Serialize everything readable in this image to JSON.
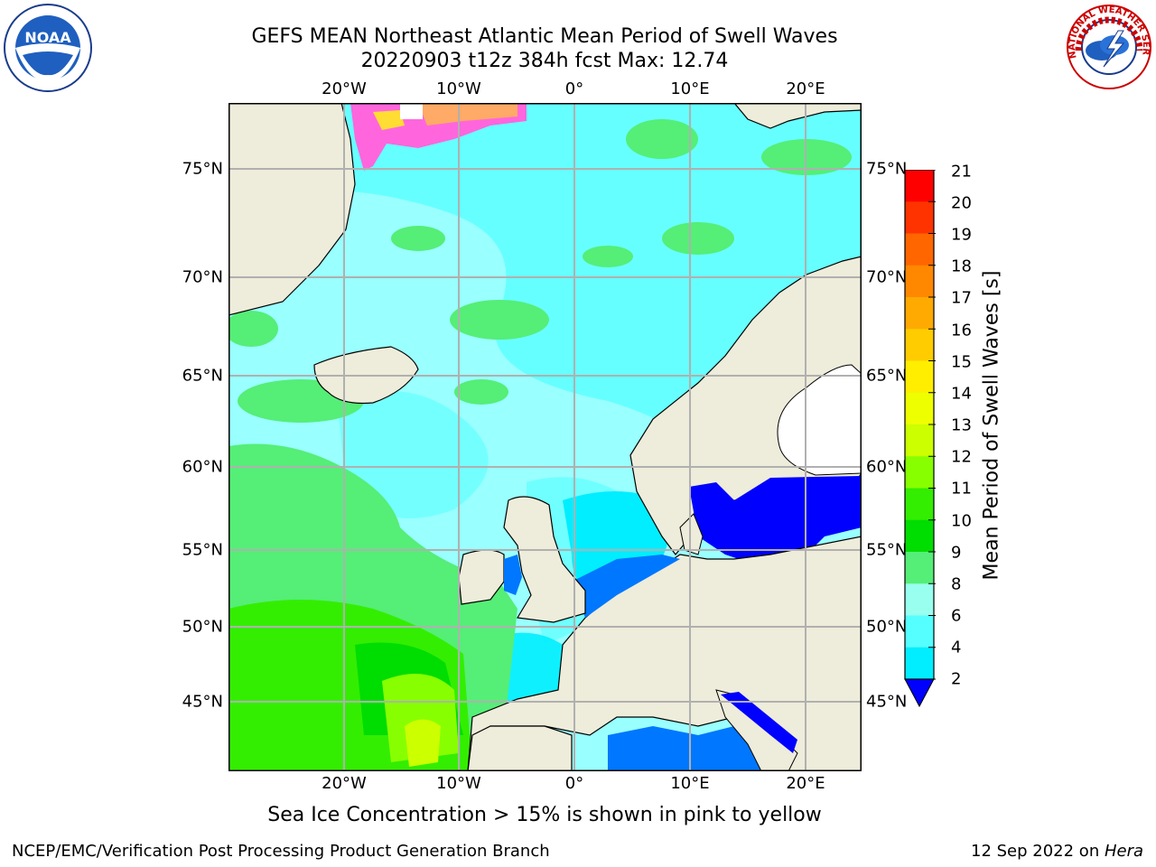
{
  "header": {
    "title_line1": "GEFS MEAN Northeast Atlantic Mean Period of Swell Waves",
    "title_line2": "20220903 t12z 384h fcst   Max: 12.74"
  },
  "map": {
    "lon_labels": [
      "20°W",
      "10°W",
      "0°",
      "10°E",
      "20°E"
    ],
    "lat_labels": [
      "75°N",
      "70°N",
      "65°N",
      "60°N",
      "55°N",
      "50°N",
      "45°N"
    ],
    "colors": {
      "land": "#eeecda",
      "ocean_base": "#99ffff",
      "grid": "#b0b0b0",
      "ice_pink": "#ff66dd",
      "ice_yellow": "#ffdd33"
    }
  },
  "colorbar": {
    "label": "Mean Period of Swell Waves [s]",
    "ticks": [
      "21",
      "20",
      "19",
      "18",
      "17",
      "16",
      "15",
      "14",
      "13",
      "12",
      "11",
      "10",
      "9",
      "8",
      "6",
      "4",
      "2"
    ],
    "colors_top_to_bottom": [
      "#ff0000",
      "#ff3300",
      "#ff6600",
      "#ff8800",
      "#ffaa00",
      "#ffcc00",
      "#ffee00",
      "#eeff00",
      "#ccff00",
      "#88ff00",
      "#33ee00",
      "#00dd00",
      "#55ee77",
      "#99ffee",
      "#55ffff",
      "#00eeff",
      "#0077ff"
    ],
    "extend_color": "#0000ff"
  },
  "note": "Sea Ice Concentration > 15% is shown in pink to yellow",
  "footer": {
    "left": "NCEP/EMC/Verification Post Processing Product Generation Branch",
    "right_date": "12 Sep 2022 on ",
    "right_machine": "Hera"
  },
  "logos": {
    "noaa_text": "NOAA",
    "nws_text": "NATIONAL WEATHER SERVICE"
  }
}
